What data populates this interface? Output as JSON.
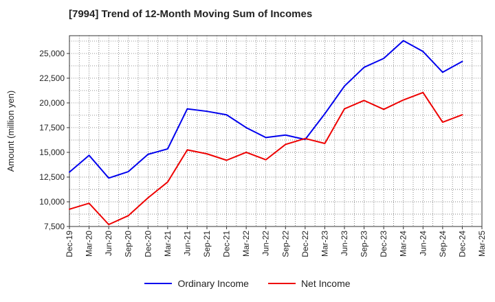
{
  "chart_data": {
    "type": "line",
    "title": "[7994]  Trend of 12-Month Moving Sum of Incomes",
    "xlabel": "",
    "ylabel": "Amount (million yen)",
    "categories": [
      "Dec-19",
      "Mar-20",
      "Jun-20",
      "Sep-20",
      "Dec-20",
      "Mar-21",
      "Jun-21",
      "Sep-21",
      "Dec-21",
      "Mar-22",
      "Jun-22",
      "Sep-22",
      "Dec-22",
      "Mar-23",
      "Jun-23",
      "Sep-23",
      "Dec-23",
      "Mar-24",
      "Jun-24",
      "Sep-24",
      "Dec-24",
      "Mar-25"
    ],
    "yticks": [
      7500,
      10000,
      12500,
      15000,
      17500,
      20000,
      22500,
      25000
    ],
    "ytick_labels": [
      "7,500",
      "10,000",
      "12,500",
      "15,000",
      "17,500",
      "20,000",
      "22,500",
      "25,000"
    ],
    "ylim": [
      7500,
      26800
    ],
    "grid": true,
    "legend_position": "bottom",
    "series": [
      {
        "name": "Ordinary Income",
        "color": "#0000ee",
        "values": [
          13000,
          14700,
          12400,
          13050,
          14800,
          15350,
          19400,
          19150,
          18800,
          17500,
          16500,
          16750,
          16300,
          18900,
          21700,
          23600,
          24500,
          26300,
          25200,
          23100,
          24200,
          null
        ]
      },
      {
        "name": "Net Income",
        "color": "#ee0000",
        "values": [
          9250,
          9850,
          7700,
          8600,
          10400,
          12000,
          15250,
          14850,
          14200,
          15000,
          14250,
          15800,
          16400,
          15900,
          19400,
          20250,
          19350,
          20300,
          21050,
          18050,
          18800,
          null
        ]
      }
    ]
  }
}
